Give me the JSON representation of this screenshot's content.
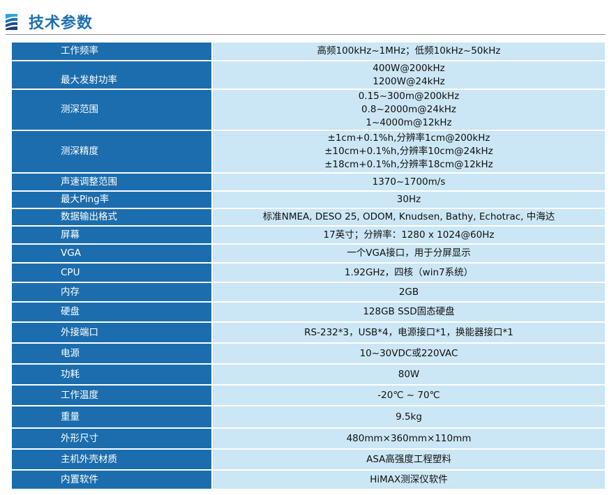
{
  "header": {
    "title": "技术参数",
    "logo_icon": "wave-stripes-icon"
  },
  "colors": {
    "key_bg": "#1b6dad",
    "value_bg": "#cbe6f4",
    "title": "#1d6fb0"
  },
  "rows": [
    {
      "key": "工作频率",
      "value": [
        "高频100kHz~1MHz；低频10kHz~50kHz"
      ]
    },
    {
      "key": "最大发射功率",
      "value": [
        "400W@200kHz",
        "1200W@24kHz"
      ]
    },
    {
      "key": "测深范围",
      "value": [
        "0.15~300m@200kHz",
        "0.8~2000m@24kHz",
        "1~4000m@12kHz"
      ]
    },
    {
      "key": "测深精度",
      "value": [
        "±1cm+0.1%h,分辨率1cm@200kHz",
        "±10cm+0.1%h,分辨率10cm@24kHz",
        "±18cm+0.1%h,分辨率18cm@12kHz"
      ]
    },
    {
      "key": "声速调整范围",
      "value": [
        "1370~1700m/s"
      ]
    },
    {
      "key": "最大Ping率",
      "value": [
        "30Hz"
      ]
    },
    {
      "key": "数据输出格式",
      "value": [
        "标准NMEA, DESO 25, ODOM, Knudsen, Bathy, Echotrac, 中海达"
      ]
    },
    {
      "key": "屏幕",
      "value": [
        "17英寸；分辨率：1280 x 1024@60Hz"
      ]
    },
    {
      "key": "VGA",
      "value": [
        "一个VGA接口，用于分屏显示"
      ]
    },
    {
      "key": "CPU",
      "value": [
        "1.92GHz，四核（win7系统）"
      ]
    },
    {
      "key": "内存",
      "value": [
        "2GB"
      ]
    },
    {
      "key": "硬盘",
      "value": [
        "128GB SSD固态硬盘"
      ]
    },
    {
      "key": "外接端口",
      "value": [
        "RS-232*3，USB*4，电源接口*1，换能器接口*1"
      ]
    },
    {
      "key": "电源",
      "value": [
        "10~30VDC或220VAC"
      ]
    },
    {
      "key": "功耗",
      "value": [
        "80W"
      ]
    },
    {
      "key": "工作温度",
      "value": [
        "-20℃ ~ 70℃"
      ]
    },
    {
      "key": "重量",
      "value": [
        "9.5kg"
      ]
    },
    {
      "key": "外形尺寸",
      "value": [
        "480mm×360mm×110mm"
      ]
    },
    {
      "key": "主机外壳材质",
      "value": [
        "ASA高强度工程塑料"
      ]
    },
    {
      "key": "内置软件",
      "value": [
        "HiMAX测深仪软件"
      ]
    }
  ]
}
